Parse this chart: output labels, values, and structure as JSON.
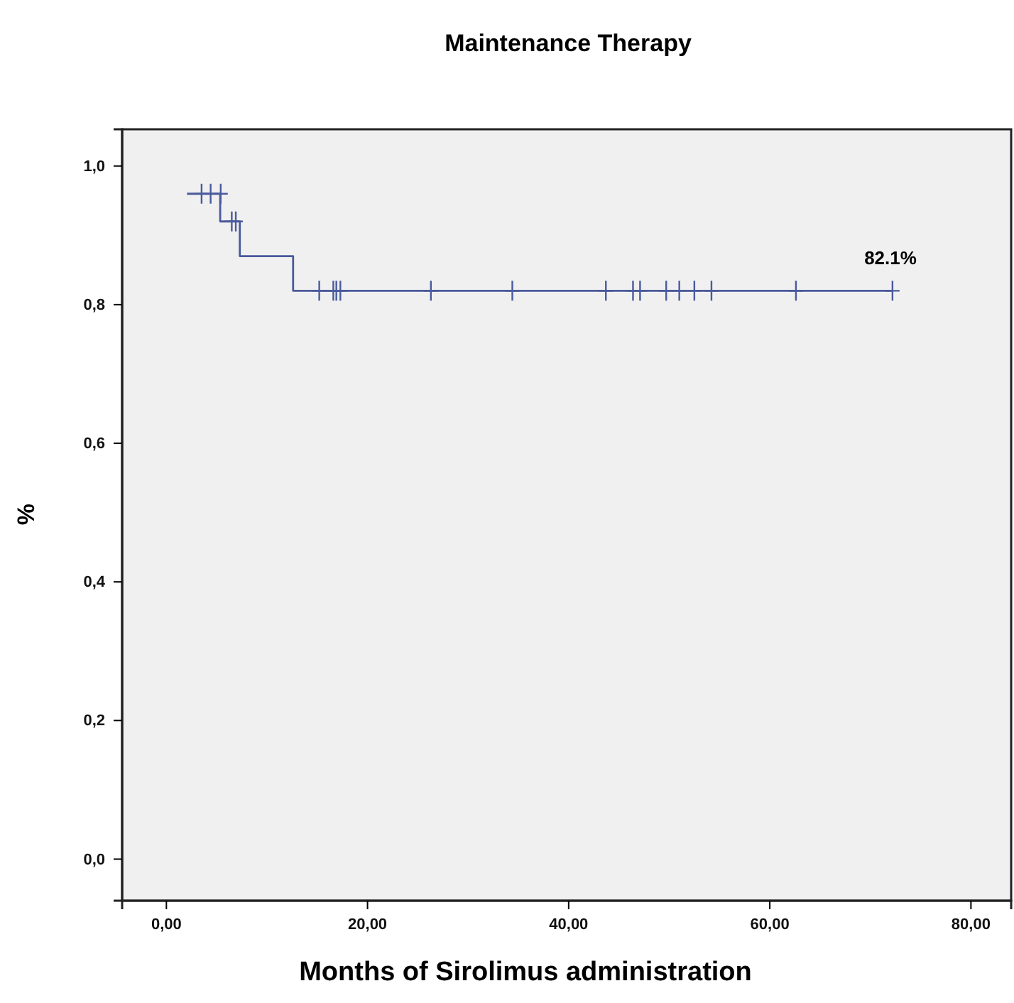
{
  "chart_data": {
    "type": "step",
    "title": "Maintenance Therapy",
    "xlabel": "Months of Sirolimus administration",
    "ylabel": "%",
    "xlim": [
      -4.4,
      84
    ],
    "ylim": [
      -0.06,
      1.053
    ],
    "xticks": [
      {
        "value": 0,
        "label": "0,00"
      },
      {
        "value": 20,
        "label": "20,00"
      },
      {
        "value": 40,
        "label": "40,00"
      },
      {
        "value": 60,
        "label": "60,00"
      },
      {
        "value": 80,
        "label": "80,00"
      }
    ],
    "yticks": [
      {
        "value": 0,
        "label": "0,0"
      },
      {
        "value": 0.2,
        "label": "0,2"
      },
      {
        "value": 0.4,
        "label": "0,4"
      },
      {
        "value": 0.6,
        "label": "0,6"
      },
      {
        "value": 0.8,
        "label": "0,8"
      },
      {
        "value": 1,
        "label": "1,0"
      }
    ],
    "grid": false,
    "series": [
      {
        "color": "#4a5a9c",
        "x": [
          2.05,
          5.35,
          7.3,
          12.6,
          72.2
        ],
        "values": [
          0.96,
          0.92,
          0.87,
          0.82,
          0.82
        ]
      },
      {
        "type": "scatter",
        "marker": "cross",
        "color": "#4a5a9c",
        "x": [
          3.5,
          4.4,
          5.4,
          6.5,
          6.9,
          15.2,
          16.6,
          16.9,
          17.3,
          26.3,
          34.4,
          43.7,
          46.4,
          47.1,
          49.7,
          51.0,
          52.5,
          54.2,
          62.6,
          72.2
        ],
        "values": [
          0.96,
          0.96,
          0.96,
          0.92,
          0.92,
          0.82,
          0.82,
          0.82,
          0.82,
          0.82,
          0.82,
          0.82,
          0.82,
          0.82,
          0.82,
          0.82,
          0.82,
          0.82,
          0.82,
          0.82
        ]
      }
    ],
    "annotations": [
      "82.1%"
    ]
  }
}
